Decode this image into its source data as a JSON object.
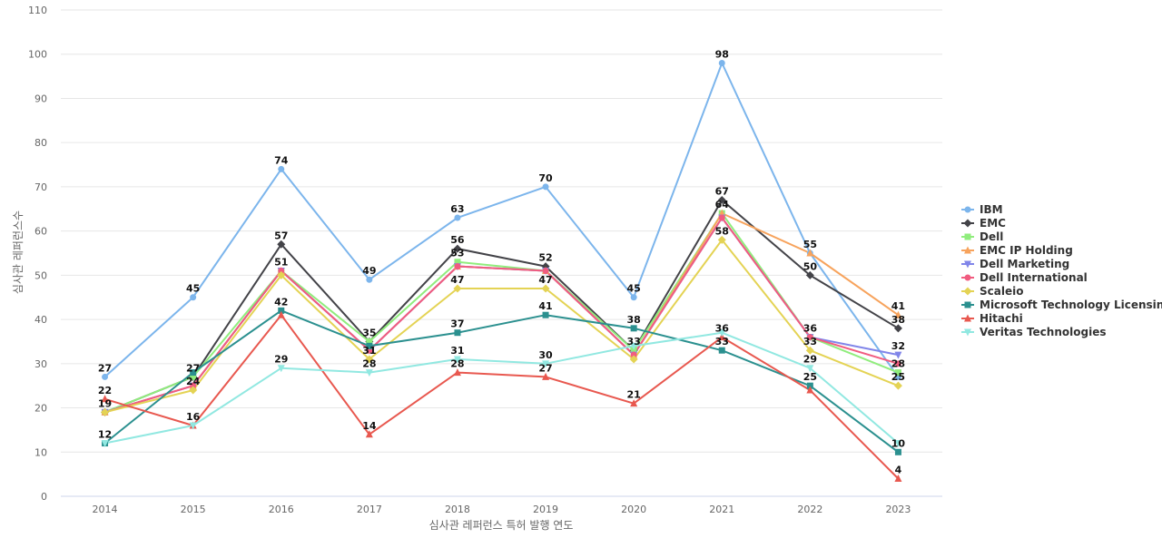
{
  "chart_data": {
    "type": "line",
    "title": "",
    "xlabel": "심사관 레퍼런스 특허 발행 연도",
    "ylabel": "심사관 레퍼런스수",
    "ylim": [
      0,
      110
    ],
    "yticks": [
      0,
      10,
      20,
      30,
      40,
      50,
      60,
      70,
      80,
      90,
      100,
      110
    ],
    "grid": true,
    "legend_position": "right",
    "categories": [
      "2014",
      "2015",
      "2016",
      "2017",
      "2018",
      "2019",
      "2020",
      "2021",
      "2022",
      "2023"
    ],
    "series": [
      {
        "name": "IBM",
        "color": "#7cb5ec",
        "marker": "circle",
        "values": [
          27,
          45,
          74,
          49,
          63,
          70,
          45,
          98,
          55,
          27
        ]
      },
      {
        "name": "EMC",
        "color": "#434348",
        "marker": "diamond",
        "values": [
          19,
          27,
          57,
          35,
          56,
          52,
          33,
          67,
          50,
          38
        ]
      },
      {
        "name": "Dell",
        "color": "#90ed7d",
        "marker": "square",
        "values": [
          19,
          27,
          51,
          35,
          53,
          51,
          33,
          64,
          36,
          28
        ]
      },
      {
        "name": "EMC IP Holding",
        "color": "#f7a35c",
        "marker": "triangle",
        "values": [
          19,
          25,
          51,
          33,
          52,
          51,
          32,
          64,
          55,
          41
        ]
      },
      {
        "name": "Dell Marketing",
        "color": "#8085e9",
        "marker": "triangle-down",
        "values": [
          19,
          25,
          51,
          33,
          52,
          51,
          32,
          63,
          36,
          32
        ]
      },
      {
        "name": "Dell International",
        "color": "#f15c80",
        "marker": "circle",
        "values": [
          19,
          25,
          51,
          33,
          52,
          51,
          32,
          63,
          36,
          30
        ]
      },
      {
        "name": "Scaleio",
        "color": "#e4d354",
        "marker": "diamond",
        "values": [
          19,
          24,
          50,
          31,
          47,
          47,
          31,
          58,
          33,
          25
        ]
      },
      {
        "name": "Microsoft Technology Licensing",
        "color": "#2b908f",
        "marker": "square",
        "values": [
          12,
          28,
          42,
          34,
          37,
          41,
          38,
          33,
          25,
          10
        ]
      },
      {
        "name": "Hitachi",
        "color": "#e8584f",
        "marker": "triangle",
        "values": [
          22,
          16,
          41,
          14,
          28,
          27,
          21,
          36,
          24,
          4
        ]
      },
      {
        "name": "Veritas Technologies",
        "color": "#91e8e1",
        "marker": "triangle-down",
        "values": [
          12,
          16,
          29,
          28,
          31,
          30,
          34,
          37,
          29,
          12
        ]
      }
    ],
    "data_labels": [
      {
        "x": "2014",
        "value": 27
      },
      {
        "x": "2014",
        "value": 22
      },
      {
        "x": "2014",
        "value": 19
      },
      {
        "x": "2014",
        "value": 12
      },
      {
        "x": "2015",
        "value": 45
      },
      {
        "x": "2015",
        "value": 27
      },
      {
        "x": "2015",
        "value": 24
      },
      {
        "x": "2015",
        "value": 16
      },
      {
        "x": "2016",
        "value": 74
      },
      {
        "x": "2016",
        "value": 57
      },
      {
        "x": "2016",
        "value": 51
      },
      {
        "x": "2016",
        "value": 42
      },
      {
        "x": "2016",
        "value": 29
      },
      {
        "x": "2017",
        "value": 49
      },
      {
        "x": "2017",
        "value": 35
      },
      {
        "x": "2017",
        "value": 31
      },
      {
        "x": "2017",
        "value": 28
      },
      {
        "x": "2017",
        "value": 14
      },
      {
        "x": "2018",
        "value": 63
      },
      {
        "x": "2018",
        "value": 56
      },
      {
        "x": "2018",
        "value": 53
      },
      {
        "x": "2018",
        "value": 47
      },
      {
        "x": "2018",
        "value": 37
      },
      {
        "x": "2018",
        "value": 31
      },
      {
        "x": "2018",
        "value": 28
      },
      {
        "x": "2019",
        "value": 70
      },
      {
        "x": "2019",
        "value": 52
      },
      {
        "x": "2019",
        "value": 47
      },
      {
        "x": "2019",
        "value": 41
      },
      {
        "x": "2019",
        "value": 30
      },
      {
        "x": "2019",
        "value": 27
      },
      {
        "x": "2020",
        "value": 45
      },
      {
        "x": "2020",
        "value": 38
      },
      {
        "x": "2020",
        "value": 33
      },
      {
        "x": "2020",
        "value": 21
      },
      {
        "x": "2021",
        "value": 98
      },
      {
        "x": "2021",
        "value": 67
      },
      {
        "x": "2021",
        "value": 64
      },
      {
        "x": "2021",
        "value": 58
      },
      {
        "x": "2021",
        "value": 36
      },
      {
        "x": "2021",
        "value": 33
      },
      {
        "x": "2022",
        "value": 55
      },
      {
        "x": "2022",
        "value": 50
      },
      {
        "x": "2022",
        "value": 36
      },
      {
        "x": "2022",
        "value": 33
      },
      {
        "x": "2022",
        "value": 29
      },
      {
        "x": "2022",
        "value": 25
      },
      {
        "x": "2023",
        "value": 41
      },
      {
        "x": "2023",
        "value": 38
      },
      {
        "x": "2023",
        "value": 32
      },
      {
        "x": "2023",
        "value": 28
      },
      {
        "x": "2023",
        "value": 25
      },
      {
        "x": "2023",
        "value": 10
      },
      {
        "x": "2023",
        "value": 4
      }
    ]
  }
}
